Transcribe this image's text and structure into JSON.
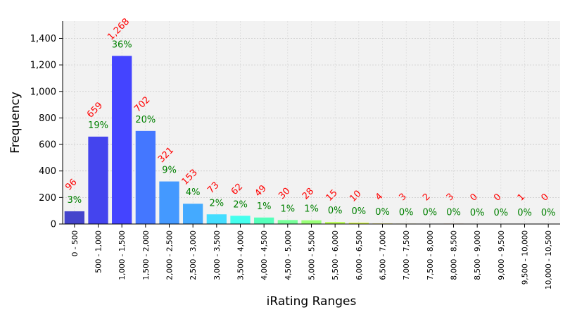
{
  "chart_data": {
    "type": "bar",
    "title": "",
    "xlabel": "iRating Ranges",
    "ylabel": "Frequency",
    "ylim": [
      0,
      1530
    ],
    "yticks": [
      0,
      200,
      400,
      600,
      800,
      1000,
      1200,
      1400
    ],
    "ytick_labels": [
      "0",
      "200",
      "400",
      "600",
      "800",
      "1,000",
      "1,200",
      "1,400"
    ],
    "grid": true,
    "categories": [
      "0 - 500",
      "500 - 1,000",
      "1,000 - 1,500",
      "1,500 - 2,000",
      "2,000 - 2,500",
      "2,500 - 3,000",
      "3,000 - 3,500",
      "3,500 - 4,000",
      "4,000 - 4,500",
      "4,500 - 5,000",
      "5,000 - 5,500",
      "5,500 - 6,000",
      "6,000 - 6,500",
      "6,500 - 7,000",
      "7,000 - 7,500",
      "7,500 - 8,000",
      "8,000 - 8,500",
      "8,500 - 9,000",
      "9,000 - 9,500",
      "9,500 - 10,000",
      "10,000 - 10,500"
    ],
    "values": [
      96,
      659,
      1268,
      702,
      321,
      153,
      73,
      62,
      49,
      30,
      28,
      15,
      10,
      4,
      3,
      2,
      3,
      0,
      0,
      1,
      0
    ],
    "value_labels": [
      "96",
      "659",
      "1,268",
      "702",
      "321",
      "153",
      "73",
      "62",
      "49",
      "30",
      "28",
      "15",
      "10",
      "4",
      "3",
      "2",
      "3",
      "0",
      "0",
      "1",
      "0"
    ],
    "percent_labels": [
      "3%",
      "19%",
      "36%",
      "20%",
      "9%",
      "4%",
      "2%",
      "2%",
      "1%",
      "1%",
      "1%",
      "0%",
      "0%",
      "0%",
      "0%",
      "0%",
      "0%",
      "0%",
      "0%",
      "0%",
      "0%"
    ],
    "colors": [
      "#4444cc",
      "#4444ee",
      "#4444ff",
      "#4477ff",
      "#4499ff",
      "#44aaff",
      "#44ddff",
      "#44ffee",
      "#55ffbb",
      "#77ff99",
      "#99ff77",
      "#bbff55",
      "#ddff44",
      "#ffee44",
      "#ffdd44",
      "#ffbb44",
      "#ff9944",
      "#ff7744",
      "#ff5544",
      "#ff4444",
      "#ee4444"
    ],
    "count_label_color": "#ff0000",
    "percent_label_color": "#008000"
  }
}
